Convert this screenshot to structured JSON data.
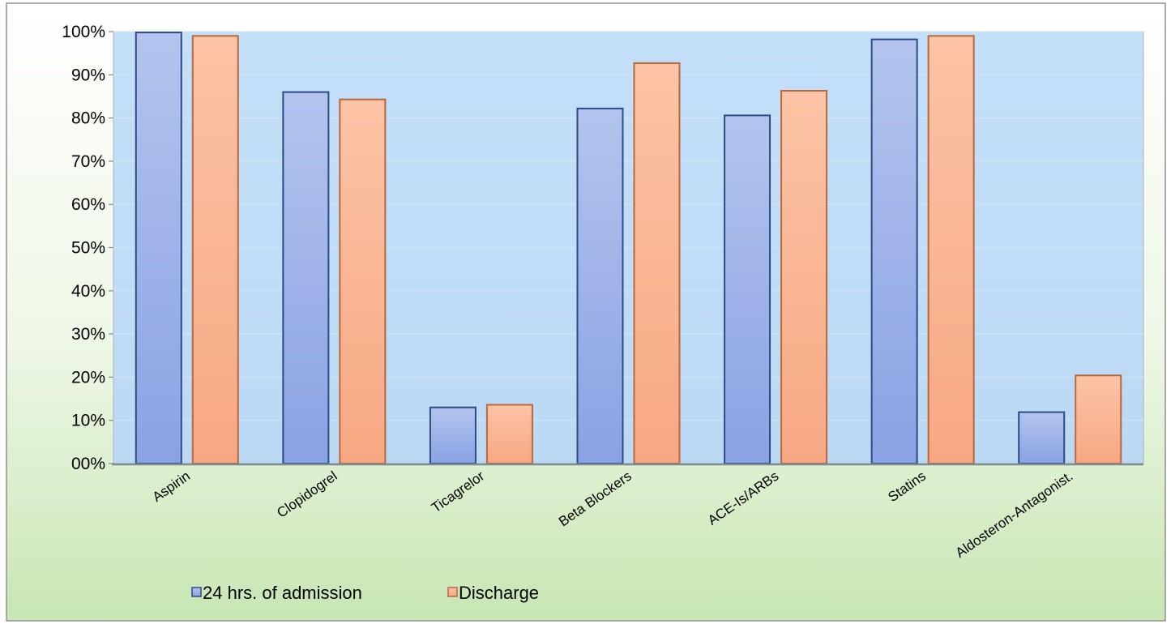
{
  "chart_data": {
    "type": "bar",
    "categories": [
      "Aspirin",
      "Clopidogrel",
      "Ticagrelor",
      "Beta Blockers",
      "ACE-Is/ARBs",
      "Statins",
      "Aldosteron-Antagonist."
    ],
    "series": [
      {
        "name": "24 hrs. of admission",
        "values": [
          99.8,
          86.0,
          13.0,
          82.2,
          80.6,
          98.2,
          11.9
        ],
        "color": "#8fa6e6"
      },
      {
        "name": "Discharge",
        "values": [
          99.0,
          84.3,
          13.6,
          92.7,
          86.3,
          99.0,
          20.4
        ],
        "color": "#f8ae86"
      }
    ],
    "ylim": [
      0,
      100
    ],
    "yticks": [
      {
        "value": 0,
        "label": "00%"
      },
      {
        "value": 10,
        "label": "10%"
      },
      {
        "value": 20,
        "label": "20%"
      },
      {
        "value": 30,
        "label": "30%"
      },
      {
        "value": 40,
        "label": "40%"
      },
      {
        "value": 50,
        "label": "50%"
      },
      {
        "value": 60,
        "label": "60%"
      },
      {
        "value": 70,
        "label": "70%"
      },
      {
        "value": 80,
        "label": "80%"
      },
      {
        "value": 90,
        "label": "90%"
      },
      {
        "value": 100,
        "label": "100%"
      }
    ],
    "grid": true,
    "legend": "bottom-left"
  }
}
